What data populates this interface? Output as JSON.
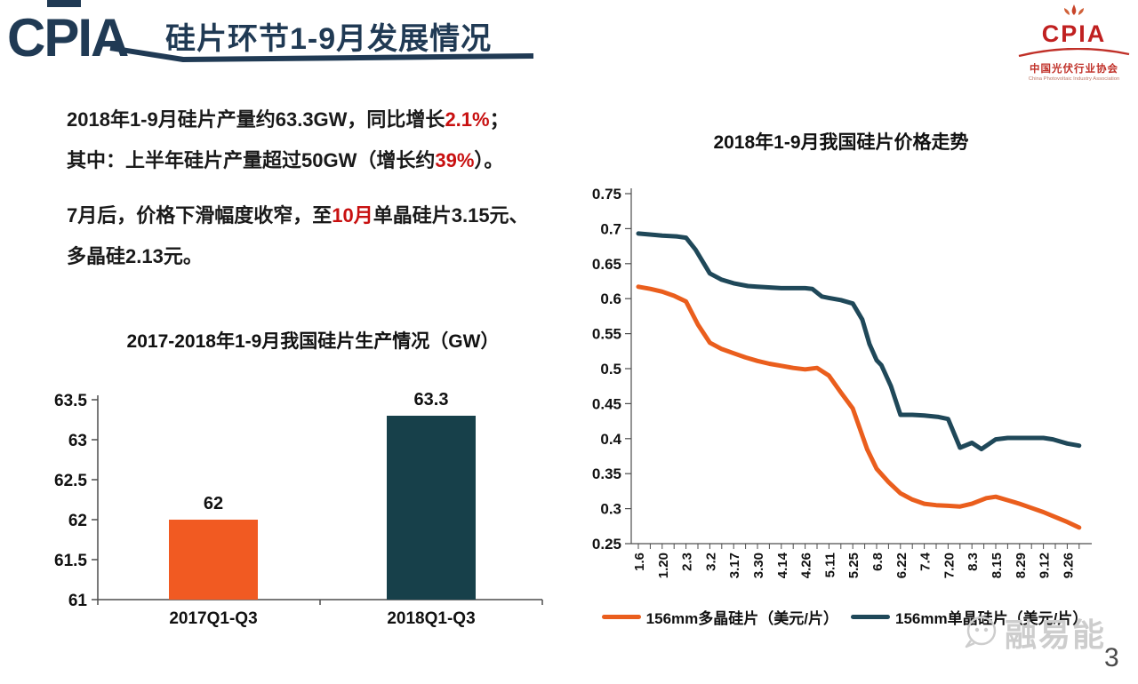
{
  "header": {
    "brand": "CPIA",
    "title": "硅片环节1-9月发展情况"
  },
  "logo": {
    "brand": "CPIA",
    "org_cn": "中国光伏行业协会",
    "org_en": "China Photovoltaic Industry Association"
  },
  "colors": {
    "navy": "#203A54",
    "red_highlight": "#C81010",
    "orange": "#EA5E1D",
    "bar_orange": "#F15A22",
    "bar_teal": "#17404A",
    "line_teal": "#1F4859",
    "axis": "#4D4D4D",
    "logo_red": "#C02020",
    "watermark_gray": "#CDCDCD"
  },
  "paragraphs": {
    "p1": [
      [
        {
          "t": "2018年1-9月硅片产量约63.3GW，同比增长"
        },
        {
          "t": "2.1%",
          "hl": true
        },
        {
          "t": "；"
        }
      ],
      [
        {
          "t": "其中：上半年硅片产量超过50GW（增长约"
        },
        {
          "t": "39%",
          "hl": true
        },
        {
          "t": "）。"
        }
      ]
    ],
    "p2": [
      [
        {
          "t": "7月后，价格下滑幅度收窄，至"
        },
        {
          "t": "10月",
          "hl": true
        },
        {
          "t": "单晶硅片3.15元、"
        }
      ],
      [
        {
          "t": "多晶硅2.13元。"
        }
      ]
    ]
  },
  "chart_data": [
    {
      "type": "bar",
      "title": "2017-2018年1-9月我国硅片生产情况（GW）",
      "categories": [
        "2017Q1-Q3",
        "2018Q1-Q3"
      ],
      "values": [
        62,
        63.3
      ],
      "data_labels": [
        "62",
        "63.3"
      ],
      "bar_colors": [
        "#F15A22",
        "#17404A"
      ],
      "ylim": [
        61,
        63.5
      ],
      "yticks": [
        "61",
        "61.5",
        "62",
        "62.5",
        "63",
        "63.5"
      ],
      "grid": false,
      "legend": "none"
    },
    {
      "type": "line",
      "title": "2018年1-9月我国硅片价格走势",
      "x_labels": [
        "1.6",
        "1.20",
        "2.3",
        "3.2",
        "3.17",
        "3.30",
        "4.14",
        "4.26",
        "5.11",
        "5.25",
        "6.8",
        "6.22",
        "7.4",
        "7.20",
        "8.3",
        "8.15",
        "8.29",
        "9.12",
        "9.26"
      ],
      "ylim": [
        0.25,
        0.75
      ],
      "yticks": [
        "0.25",
        "0.3",
        "0.35",
        "0.4",
        "0.45",
        "0.5",
        "0.55",
        "0.6",
        "0.65",
        "0.7",
        "0.75"
      ],
      "grid": false,
      "legend_position": "bottom",
      "series": [
        {
          "name": "156mm多晶硅片（美元/片）",
          "color": "#EA5E1D",
          "points": [
            [
              0,
              0.617
            ],
            [
              0.5,
              0.614
            ],
            [
              1,
              0.61
            ],
            [
              1.5,
              0.604
            ],
            [
              2,
              0.596
            ],
            [
              2.5,
              0.563
            ],
            [
              3,
              0.537
            ],
            [
              3.5,
              0.528
            ],
            [
              4,
              0.522
            ],
            [
              4.5,
              0.516
            ],
            [
              5,
              0.511
            ],
            [
              5.5,
              0.507
            ],
            [
              6,
              0.504
            ],
            [
              6.5,
              0.501
            ],
            [
              7,
              0.499
            ],
            [
              7.5,
              0.501
            ],
            [
              8,
              0.49
            ],
            [
              8.5,
              0.466
            ],
            [
              9,
              0.443
            ],
            [
              9.6,
              0.385
            ],
            [
              10,
              0.357
            ],
            [
              10.5,
              0.338
            ],
            [
              11,
              0.322
            ],
            [
              11.5,
              0.313
            ],
            [
              12,
              0.307
            ],
            [
              12.5,
              0.305
            ],
            [
              13,
              0.304
            ],
            [
              13.5,
              0.303
            ],
            [
              14,
              0.307
            ],
            [
              14.6,
              0.315
            ],
            [
              15,
              0.317
            ],
            [
              15.5,
              0.312
            ],
            [
              16,
              0.307
            ],
            [
              16.5,
              0.301
            ],
            [
              17,
              0.295
            ],
            [
              17.5,
              0.288
            ],
            [
              18,
              0.281
            ],
            [
              18.5,
              0.273
            ]
          ]
        },
        {
          "name": "156mm单晶硅片（美元/片）",
          "color": "#1F4859",
          "points": [
            [
              0,
              0.693
            ],
            [
              0.7,
              0.691
            ],
            [
              1,
              0.69
            ],
            [
              1.6,
              0.689
            ],
            [
              2,
              0.687
            ],
            [
              2.4,
              0.67
            ],
            [
              3,
              0.636
            ],
            [
              3.5,
              0.627
            ],
            [
              4,
              0.622
            ],
            [
              4.6,
              0.618
            ],
            [
              5,
              0.617
            ],
            [
              6,
              0.615
            ],
            [
              7,
              0.615
            ],
            [
              7.3,
              0.614
            ],
            [
              7.7,
              0.603
            ],
            [
              8,
              0.601
            ],
            [
              8.5,
              0.598
            ],
            [
              9,
              0.593
            ],
            [
              9.4,
              0.57
            ],
            [
              9.7,
              0.535
            ],
            [
              10,
              0.512
            ],
            [
              10.2,
              0.505
            ],
            [
              10.6,
              0.475
            ],
            [
              11,
              0.434
            ],
            [
              11.5,
              0.434
            ],
            [
              12,
              0.433
            ],
            [
              12.6,
              0.431
            ],
            [
              13,
              0.428
            ],
            [
              13.5,
              0.387
            ],
            [
              14,
              0.394
            ],
            [
              14.4,
              0.385
            ],
            [
              15,
              0.399
            ],
            [
              15.5,
              0.401
            ],
            [
              16,
              0.401
            ],
            [
              17,
              0.401
            ],
            [
              17.4,
              0.399
            ],
            [
              18,
              0.393
            ],
            [
              18.5,
              0.39
            ]
          ]
        }
      ]
    }
  ],
  "watermark": {
    "text": "融易能"
  },
  "page_number": "3"
}
